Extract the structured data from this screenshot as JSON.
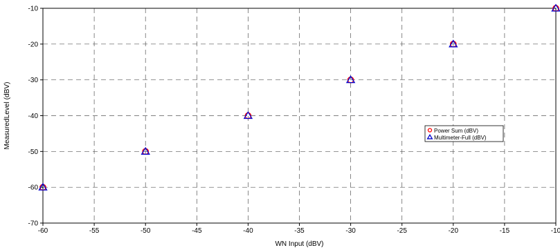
{
  "chart_data": {
    "type": "scatter",
    "xlabel": "WN Input (dBV)",
    "ylabel": "MeasuredLevel (dBV)",
    "xlim": [
      -60,
      -10
    ],
    "ylim": [
      -70,
      -10
    ],
    "x_ticks": [
      -60,
      -55,
      -50,
      -45,
      -40,
      -35,
      -30,
      -25,
      -20,
      -15,
      -10
    ],
    "y_ticks": [
      -70,
      -60,
      -50,
      -40,
      -30,
      -20,
      -10
    ],
    "x_tick_labels": [
      "-60",
      "-55",
      "-50",
      "-45",
      "-40",
      "-35",
      "-30",
      "-25",
      "-20",
      "-15",
      "-10"
    ],
    "y_tick_labels": [
      "-70",
      "-60",
      "-50",
      "-40",
      "-30",
      "-20",
      "-10"
    ],
    "grid": true,
    "legend_position": "right",
    "series": [
      {
        "name": "Power Sum (dBV)",
        "marker": "circle",
        "color": "#ff0000",
        "x": [
          -60,
          -50,
          -40,
          -30,
          -20,
          -10
        ],
        "y": [
          -60,
          -50,
          -40,
          -30,
          -20,
          -10
        ]
      },
      {
        "name": "Multimeter-Full (dBV)",
        "marker": "triangle",
        "color": "#0000cc",
        "x": [
          -60,
          -50,
          -40,
          -30,
          -20,
          -10
        ],
        "y": [
          -60,
          -50,
          -40,
          -30,
          -20,
          -10
        ]
      }
    ]
  }
}
